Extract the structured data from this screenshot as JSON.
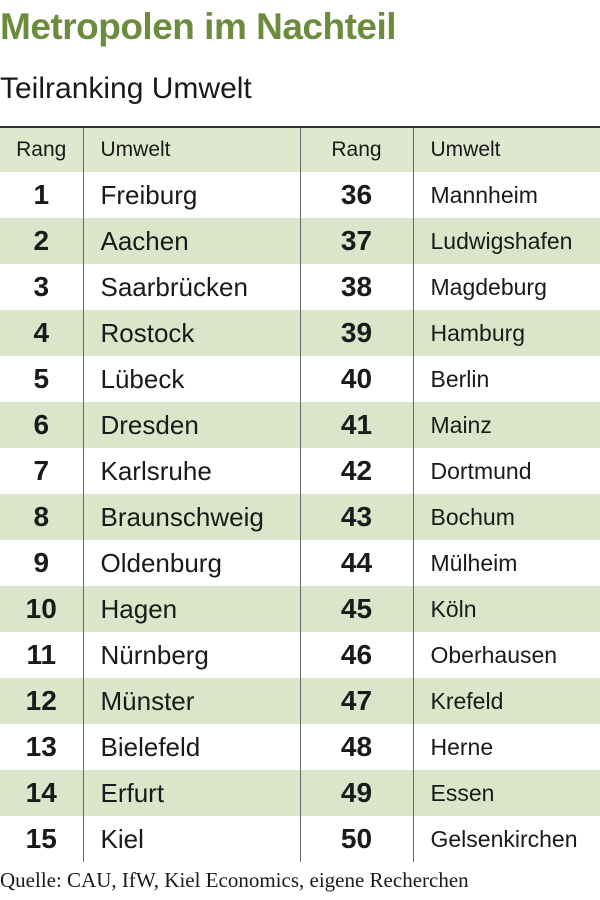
{
  "header": {
    "title": "Metropolen im Nachteil",
    "subtitle": "Teilranking Umwelt"
  },
  "table": {
    "columns": [
      "Rang",
      "Umwelt",
      "Rang",
      "Umwelt"
    ],
    "rows": [
      [
        1,
        "Freiburg",
        36,
        "Mannheim"
      ],
      [
        2,
        "Aachen",
        37,
        "Ludwigshafen"
      ],
      [
        3,
        "Saarbrücken",
        38,
        "Magdeburg"
      ],
      [
        4,
        "Rostock",
        39,
        "Hamburg"
      ],
      [
        5,
        "Lübeck",
        40,
        "Berlin"
      ],
      [
        6,
        "Dresden",
        41,
        "Mainz"
      ],
      [
        7,
        "Karlsruhe",
        42,
        "Dortmund"
      ],
      [
        8,
        "Braunschweig",
        43,
        "Bochum"
      ],
      [
        9,
        "Oldenburg",
        44,
        "Mülheim"
      ],
      [
        10,
        "Hagen",
        45,
        "Köln"
      ],
      [
        11,
        "Nürnberg",
        46,
        "Oberhausen"
      ],
      [
        12,
        "Münster",
        47,
        "Krefeld"
      ],
      [
        13,
        "Bielefeld",
        48,
        "Herne"
      ],
      [
        14,
        "Erfurt",
        49,
        "Essen"
      ],
      [
        15,
        "Kiel",
        50,
        "Gelsenkirchen"
      ]
    ]
  },
  "footer": {
    "source": "Quelle: CAU, IfW, Kiel Economics, eigene Recherchen"
  }
}
